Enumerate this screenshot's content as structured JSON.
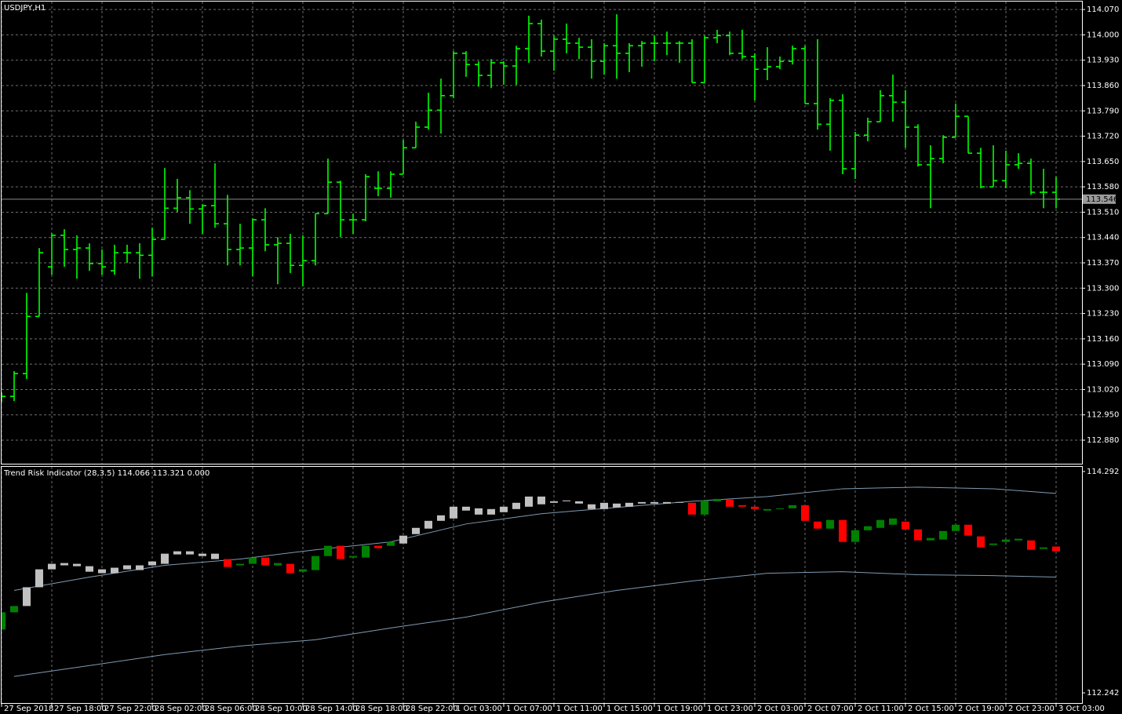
{
  "chart_data": [
    {
      "type": "ohlc",
      "title": "USDJPY,H1",
      "color": "#00ff00",
      "grid": true,
      "categories": [
        "27 Sep 2018",
        null,
        null,
        null,
        "27 Sep 18:00",
        null,
        null,
        null,
        "27 Sep 22:00",
        null,
        null,
        null,
        "28 Sep 02:00",
        null,
        null,
        null,
        "28 Sep 06:00",
        null,
        null,
        null,
        "28 Sep 10:00",
        null,
        null,
        null,
        "28 Sep 14:00",
        null,
        null,
        null,
        "28 Sep 18:00",
        null,
        null,
        null,
        "28 Sep 22:00",
        null,
        null,
        null,
        "1 Oct 03:00",
        null,
        null,
        null,
        "1 Oct 07:00",
        null,
        null,
        null,
        "1 Oct 11:00",
        null,
        null,
        null,
        "1 Oct 15:00",
        null,
        null,
        null,
        "1 Oct 19:00",
        null,
        null,
        null,
        "1 Oct 23:00",
        null,
        null,
        null,
        "2 Oct 03:00",
        null,
        null,
        null,
        "2 Oct 07:00",
        null,
        null,
        null,
        "2 Oct 11:00",
        null,
        null,
        null,
        "2 Oct 15:00",
        null,
        null,
        null,
        "2 Oct 19:00",
        null,
        null,
        null,
        "2 Oct 23:00",
        null,
        null,
        null,
        "3 Oct 03:00"
      ],
      "open": [
        113.001,
        113.001,
        113.064,
        113.222,
        113.359,
        113.446,
        113.407,
        113.411,
        113.368,
        113.348,
        113.398,
        113.398,
        113.391,
        113.435,
        113.521,
        113.55,
        113.519,
        113.528,
        113.478,
        113.407,
        113.411,
        113.489,
        113.42,
        113.424,
        113.363,
        113.376,
        113.506,
        113.593,
        113.489,
        113.489,
        113.576,
        113.576,
        113.615,
        113.688,
        113.745,
        113.792,
        113.832,
        113.949,
        113.918,
        113.888,
        113.923,
        113.914,
        113.962,
        114.031,
        113.955,
        113.988,
        113.977,
        113.966,
        113.927,
        113.97,
        113.949,
        113.97,
        113.977,
        113.977,
        113.977,
        113.977,
        113.868,
        113.992,
        113.998,
        113.949,
        113.94,
        113.905,
        113.912,
        113.927,
        113.962,
        113.81,
        113.753,
        113.819,
        113.63,
        113.723,
        113.76,
        113.832,
        113.814,
        113.745,
        113.641,
        113.658,
        113.717,
        113.775,
        113.673,
        113.58,
        113.597,
        113.641,
        113.645,
        113.565,
        113.565
      ],
      "high": [
        113.012,
        113.071,
        113.287,
        113.411,
        113.452,
        113.463,
        113.446,
        113.424,
        113.407,
        113.42,
        113.42,
        113.424,
        113.467,
        113.632,
        113.602,
        113.571,
        113.532,
        113.645,
        113.558,
        113.478,
        113.493,
        113.521,
        113.441,
        113.45,
        113.446,
        113.506,
        113.658,
        113.597,
        113.506,
        113.615,
        113.623,
        113.623,
        113.71,
        113.76,
        113.84,
        113.879,
        113.955,
        113.955,
        113.927,
        113.933,
        113.927,
        113.97,
        114.053,
        114.042,
        113.998,
        114.031,
        113.992,
        113.988,
        113.977,
        114.057,
        113.977,
        113.983,
        113.998,
        114.009,
        113.983,
        113.988,
        113.998,
        114.014,
        114.009,
        114.014,
        113.949,
        113.966,
        113.94,
        113.97,
        113.97,
        113.988,
        113.825,
        113.836,
        113.732,
        113.771,
        113.847,
        113.89,
        113.847,
        113.753,
        113.695,
        113.723,
        113.81,
        113.775,
        113.688,
        113.695,
        113.68,
        113.673,
        113.658,
        113.63,
        113.608
      ],
      "low": [
        112.986,
        112.988,
        113.049,
        113.222,
        113.337,
        113.359,
        113.326,
        113.348,
        113.337,
        113.337,
        113.37,
        113.326,
        113.333,
        113.435,
        113.511,
        113.478,
        113.45,
        113.467,
        113.363,
        113.363,
        113.333,
        113.402,
        113.311,
        113.342,
        113.305,
        113.363,
        113.506,
        113.441,
        113.45,
        113.485,
        113.554,
        113.55,
        113.615,
        113.688,
        113.738,
        113.727,
        113.825,
        113.884,
        113.857,
        113.853,
        113.862,
        113.862,
        113.923,
        113.94,
        113.901,
        113.949,
        113.933,
        113.879,
        113.89,
        113.879,
        113.897,
        113.912,
        113.927,
        113.944,
        113.923,
        113.868,
        113.868,
        113.977,
        113.944,
        113.933,
        113.819,
        113.875,
        113.905,
        113.918,
        113.81,
        113.738,
        113.68,
        113.615,
        113.602,
        113.706,
        113.76,
        113.76,
        113.688,
        113.636,
        113.521,
        113.645,
        113.717,
        113.673,
        113.576,
        113.58,
        113.576,
        113.63,
        113.558,
        113.521,
        113.521
      ],
      "close": [
        113.001,
        113.064,
        113.222,
        113.398,
        113.446,
        113.407,
        113.411,
        113.368,
        113.359,
        113.398,
        113.398,
        113.391,
        113.435,
        113.521,
        113.55,
        113.519,
        113.528,
        113.478,
        113.407,
        113.411,
        113.489,
        113.42,
        113.424,
        113.363,
        113.376,
        113.506,
        113.593,
        113.489,
        113.489,
        113.608,
        113.576,
        113.615,
        113.688,
        113.745,
        113.792,
        113.832,
        113.949,
        113.918,
        113.888,
        113.923,
        113.914,
        113.962,
        114.031,
        113.955,
        113.988,
        113.977,
        113.966,
        113.927,
        113.97,
        113.949,
        113.97,
        113.977,
        113.977,
        113.977,
        113.977,
        113.868,
        113.992,
        113.998,
        113.949,
        113.94,
        113.905,
        113.912,
        113.927,
        113.962,
        113.81,
        113.753,
        113.819,
        113.63,
        113.723,
        113.76,
        113.832,
        113.814,
        113.745,
        113.641,
        113.658,
        113.717,
        113.775,
        113.673,
        113.58,
        113.597,
        113.641,
        113.645,
        113.565,
        113.565,
        113.546
      ],
      "current_price": 113.546,
      "ylim": [
        112.815,
        114.092
      ],
      "yticks": [
        {
          "value": 114.07,
          "label": "114.070"
        },
        {
          "value": 114.0,
          "label": "114.000"
        },
        {
          "value": 113.93,
          "label": "113.930"
        },
        {
          "value": 113.86,
          "label": "113.860"
        },
        {
          "value": 113.79,
          "label": "113.790"
        },
        {
          "value": 113.72,
          "label": "113.720"
        },
        {
          "value": 113.65,
          "label": "113.650"
        },
        {
          "value": 113.58,
          "label": "113.580"
        },
        {
          "value": 113.51,
          "label": "113.510"
        },
        {
          "value": 113.44,
          "label": "113.440"
        },
        {
          "value": 113.37,
          "label": "113.370"
        },
        {
          "value": 113.3,
          "label": "113.300"
        },
        {
          "value": 113.23,
          "label": "113.230"
        },
        {
          "value": 113.16,
          "label": "113.160"
        },
        {
          "value": 113.09,
          "label": "113.090"
        },
        {
          "value": 113.02,
          "label": "113.020"
        },
        {
          "value": 112.95,
          "label": "112.950"
        },
        {
          "value": 112.88,
          "label": "112.880"
        }
      ]
    },
    {
      "type": "candlestick",
      "title": "Trend Risk Indicator (28,3.5) 114.066 113.321 0.000",
      "open": [
        112.828,
        112.988,
        113.046,
        113.22,
        113.386,
        113.423,
        113.415,
        113.415,
        113.386,
        113.401,
        113.386,
        113.379,
        113.423,
        113.437,
        113.524,
        113.553,
        113.509,
        113.481,
        113.481,
        113.423,
        113.437,
        113.495,
        113.423,
        113.437,
        113.364,
        113.379,
        113.509,
        113.604,
        113.495,
        113.495,
        113.604,
        113.604,
        113.625,
        113.712,
        113.763,
        113.835,
        113.857,
        113.93,
        113.951,
        113.944,
        113.915,
        113.944,
        113.966,
        113.988,
        114.002,
        114.016,
        114.016,
        113.988,
        113.944,
        113.959,
        113.966,
        113.995,
        113.995,
        113.995,
        114.002,
        114.002,
        113.893,
        114.016,
        114.031,
        113.98,
        113.966,
        113.93,
        113.944,
        113.951,
        113.98,
        113.828,
        113.763,
        113.843,
        113.64,
        113.748,
        113.77,
        113.799,
        113.828,
        113.756,
        113.654,
        113.662,
        113.741,
        113.799,
        113.691,
        113.611,
        113.64,
        113.654,
        113.654,
        113.575,
        113.597
      ],
      "close": [
        112.988,
        113.046,
        113.22,
        113.386,
        113.437,
        113.444,
        113.437,
        113.364,
        113.35,
        113.35,
        113.423,
        113.423,
        113.459,
        113.531,
        113.553,
        113.524,
        113.531,
        113.531,
        113.408,
        113.437,
        113.495,
        113.423,
        113.444,
        113.35,
        113.386,
        113.509,
        113.604,
        113.481,
        113.509,
        113.604,
        113.582,
        113.64,
        113.698,
        113.77,
        113.835,
        113.886,
        113.966,
        113.966,
        113.893,
        113.893,
        113.966,
        114.002,
        114.06,
        114.06,
        114.016,
        114.024,
        113.995,
        113.944,
        114.002,
        113.995,
        114.002,
        114.009,
        114.009,
        114.009,
        114.009,
        113.893,
        114.024,
        114.038,
        113.966,
        113.966,
        113.944,
        113.944,
        113.951,
        113.98,
        113.835,
        113.763,
        113.843,
        113.64,
        113.748,
        113.785,
        113.843,
        113.857,
        113.756,
        113.654,
        113.676,
        113.741,
        113.799,
        113.698,
        113.589,
        113.625,
        113.662,
        113.669,
        113.567,
        113.589,
        113.553
      ],
      "colors": [
        "green",
        "green",
        "silver",
        "silver",
        "silver",
        "silver",
        "silver",
        "silver",
        "silver",
        "silver",
        "silver",
        "silver",
        "silver",
        "silver",
        "silver",
        "silver",
        "silver",
        "silver",
        "red",
        "green",
        "green",
        "red",
        "green",
        "red",
        "green",
        "green",
        "green",
        "red",
        "green",
        "green",
        "red",
        "green",
        "silver",
        "silver",
        "silver",
        "silver",
        "silver",
        "silver",
        "silver",
        "silver",
        "silver",
        "silver",
        "silver",
        "silver",
        "silver",
        "silver",
        "silver",
        "silver",
        "silver",
        "silver",
        "silver",
        "silver",
        "silver",
        "silver",
        "silver",
        "red",
        "green",
        "green",
        "red",
        "red",
        "red",
        "green",
        "green",
        "green",
        "red",
        "red",
        "green",
        "red",
        "green",
        "green",
        "green",
        "green",
        "red",
        "red",
        "green",
        "green",
        "green",
        "red",
        "red",
        "green",
        "green",
        "green",
        "red",
        "green",
        "red"
      ],
      "band_color": "#7f9bb3",
      "band_x": [
        1,
        7,
        13,
        19,
        25,
        31,
        37,
        43,
        49,
        55,
        61,
        67,
        73,
        79,
        84
      ],
      "upper_band": [
        113.191,
        113.314,
        113.423,
        113.481,
        113.567,
        113.64,
        113.806,
        113.901,
        113.959,
        114.016,
        114.06,
        114.132,
        114.147,
        114.132,
        114.089
      ],
      "lower_band": [
        112.394,
        112.495,
        112.597,
        112.676,
        112.734,
        112.843,
        112.944,
        113.082,
        113.191,
        113.278,
        113.35,
        113.364,
        113.336,
        113.328,
        113.314
      ],
      "ylim": [
        112.148,
        114.335
      ],
      "yticks": [
        114.292,
        112.242
      ]
    }
  ]
}
